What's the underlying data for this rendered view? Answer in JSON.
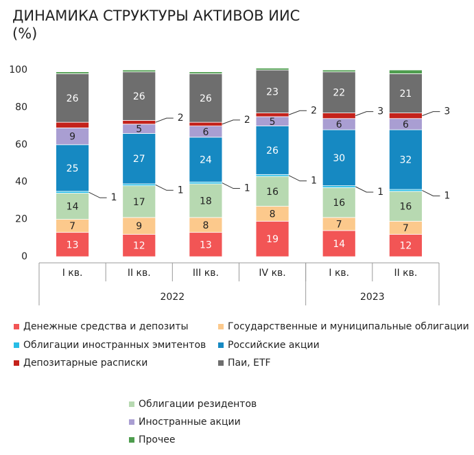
{
  "chart_data": {
    "type": "stacked_bar",
    "title": "ДИНАМИКА СТРУКТУРЫ АКТИВОВ ИИС",
    "subtitle": "(%)",
    "categories": [
      "I кв.",
      "II кв.",
      "III кв.",
      "IV кв.",
      "I кв.",
      "II кв."
    ],
    "groups": [
      {
        "name": "2022",
        "size": 4
      },
      {
        "name": "2023",
        "size": 2
      }
    ],
    "ylim": [
      0,
      100
    ],
    "yticks": [
      0,
      20,
      40,
      60,
      80,
      100
    ],
    "grid": false,
    "series": [
      {
        "name": "Денежные средства и депозиты",
        "color": "#f25555",
        "label_color": "#ffffff",
        "values": [
          13,
          12,
          13,
          19,
          14,
          12
        ]
      },
      {
        "name": "Государственные и муниципальные облигации",
        "color": "#fcc98c",
        "label_color": "#222222",
        "values": [
          7,
          9,
          8,
          8,
          7,
          7
        ]
      },
      {
        "name": "Облигации резидентов",
        "color": "#b7d9b1",
        "label_color": "#222222",
        "values": [
          14,
          17,
          18,
          16,
          16,
          16
        ]
      },
      {
        "name": "Облигации иностранных эмитентов",
        "color": "#28bde6",
        "label_color": "#222222",
        "values": [
          1,
          1,
          1,
          1,
          1,
          1
        ],
        "label_outside": "down"
      },
      {
        "name": "Российские акции",
        "color": "#1689c2",
        "label_color": "#ffffff",
        "values": [
          25,
          27,
          24,
          26,
          30,
          32
        ]
      },
      {
        "name": "Иностранные акции",
        "color": "#a99ed2",
        "label_color": "#222222",
        "values": [
          9,
          5,
          6,
          5,
          6,
          6
        ]
      },
      {
        "name": "Депозитарные расписки",
        "color": "#c4221b",
        "label_color": "#222222",
        "values": [
          3,
          2,
          2,
          2,
          3,
          3
        ],
        "value_labels": [
          null,
          "2",
          "2",
          "2",
          "3",
          "3"
        ],
        "label_outside": "up"
      },
      {
        "name": "Паи, ETF",
        "color": "#6e6e6e",
        "label_color": "#ffffff",
        "values": [
          26,
          26,
          26,
          23,
          22,
          21
        ]
      },
      {
        "name": "Прочее",
        "color": "#4e9d4e",
        "label_color": "#222222",
        "values": [
          1,
          1,
          1,
          1,
          1,
          2
        ],
        "value_labels": [
          null,
          null,
          null,
          null,
          null,
          null
        ]
      }
    ]
  }
}
